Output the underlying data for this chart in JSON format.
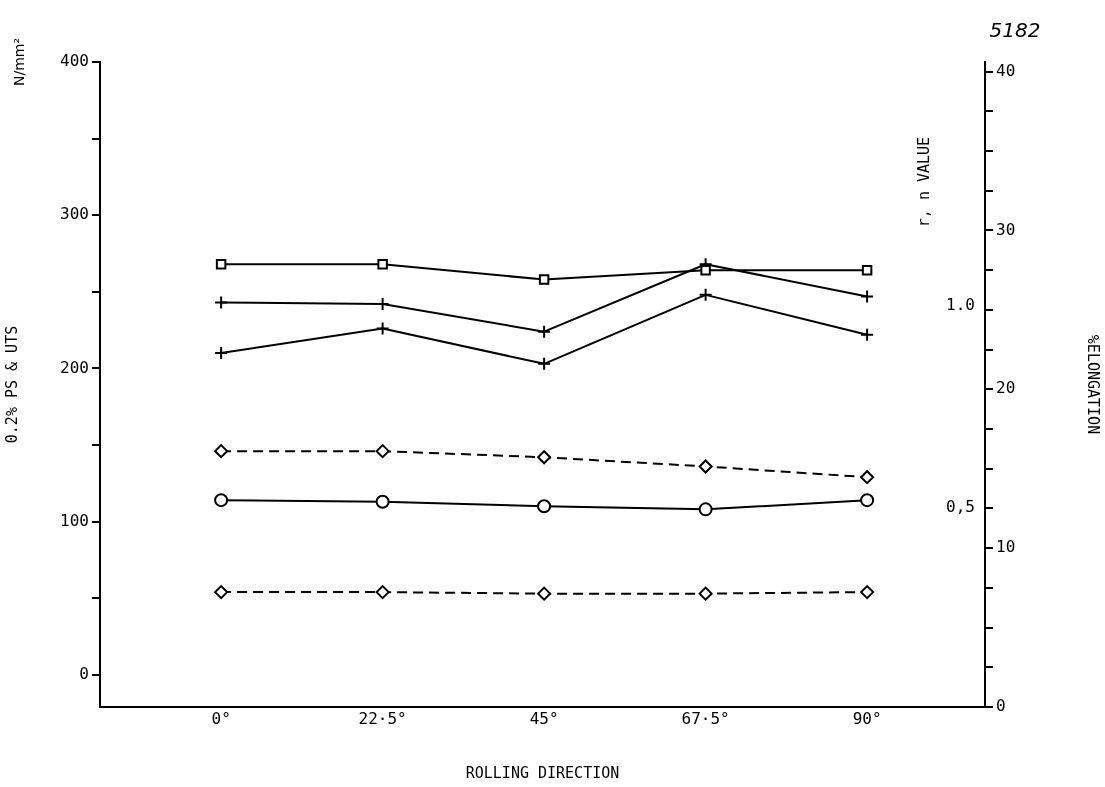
{
  "chart_data": {
    "type": "line",
    "xlabel": "ROLLING DIRECTION",
    "ylabel": "0.2% PS & UTS",
    "y2label": "%ELONGATION",
    "y3label": "r, n VALUE",
    "annotations": [
      "5182",
      "N/mm²"
    ],
    "categories": [
      "0°",
      "22·5°",
      "45°",
      "67·5°",
      "90°"
    ],
    "series": [
      {
        "color": "#000000",
        "marker": "square",
        "line_style": "solid",
        "values": [
          268,
          268,
          258,
          264,
          264
        ]
      },
      {
        "color": "#000000",
        "marker": "cross",
        "line_style": "solid",
        "values": [
          243,
          242,
          224,
          268,
          247
        ]
      },
      {
        "color": "#000000",
        "marker": "cross",
        "line_style": "solid",
        "values": [
          210,
          226,
          203,
          248,
          222
        ]
      },
      {
        "color": "#000000",
        "marker": "diamond",
        "line_style": "dashed",
        "values": [
          146,
          146,
          142,
          136,
          129
        ]
      },
      {
        "color": "#000000",
        "marker": "circle",
        "line_style": "solid",
        "values": [
          114,
          113,
          110,
          108,
          114
        ]
      },
      {
        "color": "#000000",
        "marker": "diamond",
        "line_style": "dashed",
        "values": [
          54,
          54,
          53,
          53,
          54
        ]
      }
    ],
    "ylim": [
      -21,
      400
    ],
    "yticks": [
      0,
      {
        "value": 50,
        "label": null
      },
      100,
      {
        "value": 150,
        "label": null
      },
      200,
      {
        "value": 250,
        "label": null
      },
      300,
      {
        "value": 350,
        "label": null
      },
      400
    ],
    "y2lim": [
      0,
      40.6
    ],
    "y2ticks": [
      0,
      {
        "value": 2.5,
        "label": null
      },
      {
        "value": 5,
        "label": null
      },
      {
        "value": 7.5,
        "label": null
      },
      10,
      {
        "value": 12.5,
        "label": null
      },
      {
        "value": 15,
        "label": null
      },
      {
        "value": 17.5,
        "label": null
      },
      20,
      {
        "value": 22.5,
        "label": null
      },
      {
        "value": 25,
        "label": null
      },
      {
        "value": 27.5,
        "label": null
      },
      30,
      {
        "value": 32.5,
        "label": null
      },
      {
        "value": 35,
        "label": null
      },
      {
        "value": 37.5,
        "label": null
      },
      40
    ],
    "y3lim": [
      0.007,
      1.604
    ],
    "y3ticks": [
      {
        "value": 0.5,
        "label": "0,5"
      },
      {
        "value": 1,
        "label": "1.0"
      }
    ],
    "grid": false,
    "legend": false
  }
}
